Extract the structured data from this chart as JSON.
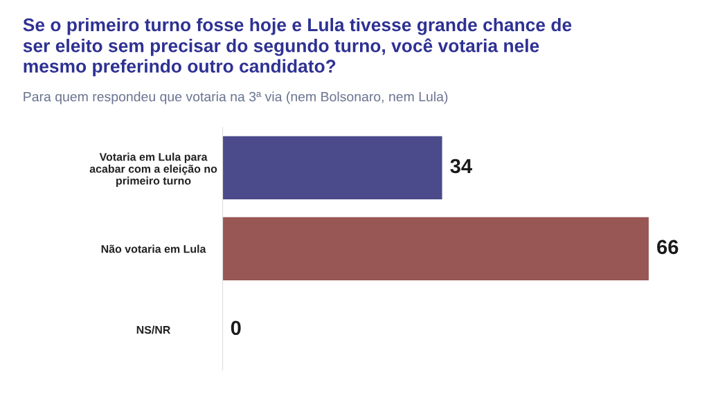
{
  "chart_data": {
    "type": "bar",
    "orientation": "horizontal",
    "title": "Se o primeiro turno fosse hoje e Lula tivesse grande chance de\nser eleito sem precisar do segundo turno, você votaria nele\nmesmo preferindo outro candidato?",
    "subtitle": "Para quem respondeu que votaria na 3ª via (nem Bolsonaro, nem Lula)",
    "categories": [
      "Votaria em Lula para\nacabar com a eleição no\nprimeiro turno",
      "Não votaria em Lula",
      "NS/NR"
    ],
    "values": [
      34,
      66,
      0
    ],
    "colors": [
      "#4b4a8a",
      "#985654",
      "#985654"
    ],
    "data_labels": true,
    "tick_labels": "y",
    "grid": false,
    "legend": false
  }
}
